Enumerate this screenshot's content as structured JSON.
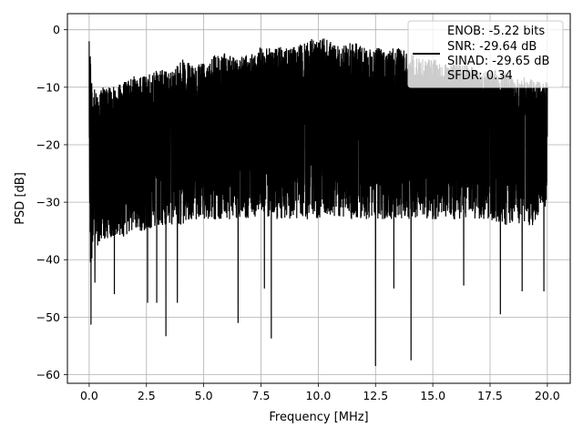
{
  "chart_data": {
    "type": "line",
    "title": "",
    "xlabel": "Frequency [MHz]",
    "ylabel": "PSD [dB]",
    "xlim": [
      -0.95,
      21.0
    ],
    "ylim": [
      -61.5,
      2.8
    ],
    "grid": true,
    "x_ticks": [
      0.0,
      2.5,
      5.0,
      7.5,
      10.0,
      12.5,
      15.0,
      17.5,
      20.0
    ],
    "x_tick_labels": [
      "0.0",
      "2.5",
      "5.0",
      "7.5",
      "10.0",
      "12.5",
      "15.0",
      "17.5",
      "20.0"
    ],
    "y_ticks": [
      0,
      -10,
      -20,
      -30,
      -40,
      -50,
      -60
    ],
    "y_tick_labels": [
      "0",
      "−10",
      "−20",
      "−30",
      "−40",
      "−50",
      "−60"
    ],
    "legend": {
      "position": "upper-right",
      "entries": [
        "ENOB: -5.22 bits",
        "SNR: -29.64 dB",
        "SINAD: -29.65 dB",
        "SFDR: 0.34"
      ]
    },
    "series": [
      {
        "color": "#000000",
        "envelope": {
          "x": [
            0.0,
            0.05,
            0.1,
            0.3,
            0.6,
            1.0,
            1.5,
            2.0,
            2.5,
            3.0,
            3.5,
            4.0,
            4.5,
            5.0,
            5.5,
            6.0,
            6.5,
            7.0,
            7.5,
            8.0,
            8.5,
            9.0,
            9.5,
            10.0,
            10.5,
            11.0,
            11.5,
            12.0,
            12.5,
            13.0,
            13.5,
            14.0,
            14.5,
            15.0,
            15.5,
            16.0,
            16.5,
            17.0,
            17.5,
            18.0,
            18.5,
            19.0,
            19.5,
            20.0
          ],
          "upper": [
            0,
            -1,
            -9,
            -11,
            -10,
            -10,
            -9,
            -8,
            -8,
            -7,
            -7,
            -5,
            -6,
            -5,
            -4,
            -4,
            -5,
            -4,
            -3,
            -3,
            -3,
            -3,
            -2,
            -1,
            -2,
            -3,
            -2,
            -3,
            -3,
            -3,
            -3,
            -4,
            -5,
            -5,
            -6,
            -6,
            -6,
            -7,
            -7,
            -7,
            -8,
            -8,
            -9,
            -9
          ],
          "lower": [
            -20,
            -43,
            -40,
            -38,
            -37,
            -36,
            -36,
            -35,
            -35,
            -34,
            -34,
            -34,
            -33,
            -33,
            -33,
            -33,
            -33,
            -33,
            -32,
            -33,
            -33,
            -33,
            -33,
            -33,
            -33,
            -33,
            -33,
            -33,
            -33,
            -33,
            -33,
            -33,
            -33,
            -33,
            -33,
            -33,
            -33,
            -33,
            -33,
            -34,
            -34,
            -34,
            -34,
            -30
          ]
        },
        "dips": [
          {
            "x": 0.08,
            "y": -51.3
          },
          {
            "x": 0.25,
            "y": -44
          },
          {
            "x": 1.1,
            "y": -46
          },
          {
            "x": 2.55,
            "y": -47.5
          },
          {
            "x": 2.95,
            "y": -47.5
          },
          {
            "x": 3.35,
            "y": -53.3
          },
          {
            "x": 3.85,
            "y": -47.5
          },
          {
            "x": 6.5,
            "y": -51
          },
          {
            "x": 7.65,
            "y": -45
          },
          {
            "x": 7.95,
            "y": -53.7
          },
          {
            "x": 12.5,
            "y": -58.5
          },
          {
            "x": 14.05,
            "y": -57.5
          },
          {
            "x": 17.95,
            "y": -49.5
          },
          {
            "x": 13.3,
            "y": -45
          },
          {
            "x": 18.9,
            "y": -45.5
          },
          {
            "x": 19.85,
            "y": -45.5
          },
          {
            "x": 16.35,
            "y": -44.5
          }
        ]
      }
    ]
  }
}
